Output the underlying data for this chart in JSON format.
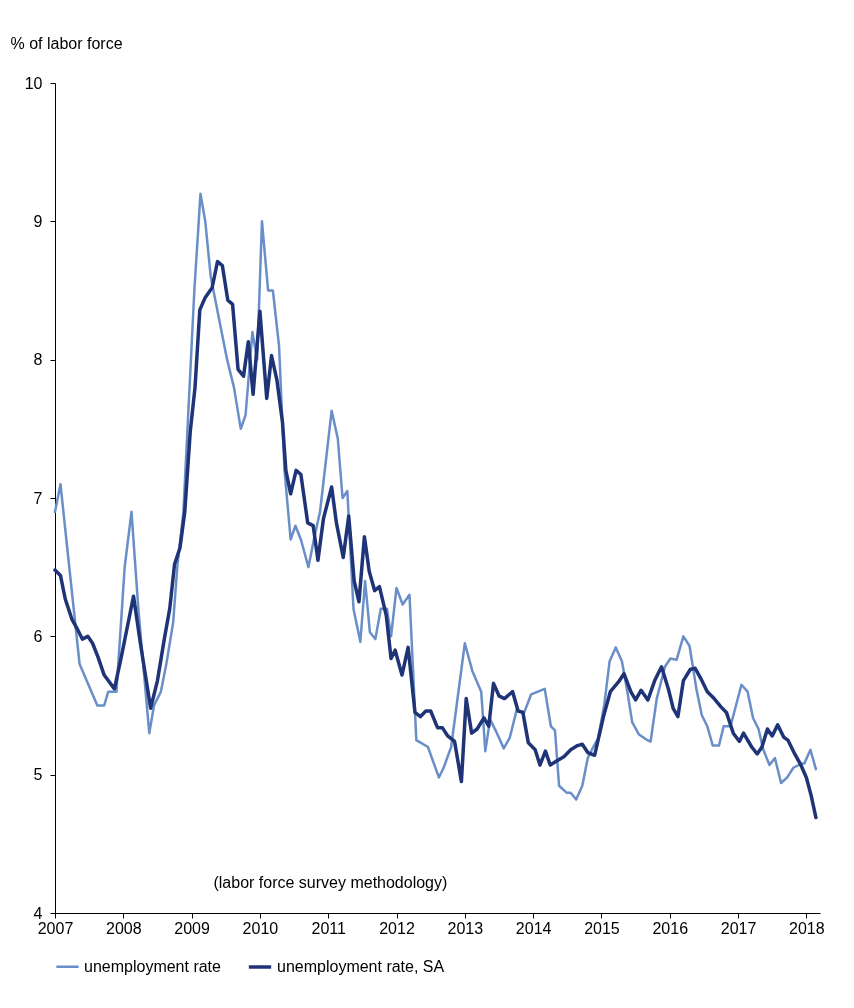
{
  "chart_data": {
    "type": "line",
    "ylabel": "% of labor force",
    "xlim": [
      2007,
      2018.2
    ],
    "xticks": [
      2007,
      2008,
      2009,
      2010,
      2011,
      2012,
      2013,
      2014,
      2015,
      2016,
      2017,
      2018
    ],
    "ylim": [
      4,
      10
    ],
    "yticks": [
      4,
      5,
      6,
      7,
      8,
      9,
      10
    ],
    "grid": false,
    "legend": "bottom",
    "marker": "none",
    "line_style": "solid",
    "annotations": [
      "(labor force survey methodology)"
    ],
    "series": [
      {
        "name": "unemployment rate",
        "color": "#6a8ec8",
        "x": [
          2007.0,
          2007.08,
          2007.36,
          2007.62,
          2007.72,
          2007.78,
          2007.9,
          2008.02,
          2008.12,
          2008.22,
          2008.38,
          2008.45,
          2008.55,
          2008.63,
          2008.73,
          2008.79,
          2008.88,
          2008.96,
          2009.04,
          2009.13,
          2009.2,
          2009.28,
          2009.4,
          2009.52,
          2009.62,
          2009.72,
          2009.79,
          2009.89,
          2009.96,
          2010.03,
          2010.12,
          2010.19,
          2010.28,
          2010.36,
          2010.45,
          2010.52,
          2010.6,
          2010.71,
          2010.79,
          2010.88,
          2010.95,
          2011.05,
          2011.14,
          2011.21,
          2011.28,
          2011.37,
          2011.47,
          2011.54,
          2011.61,
          2011.69,
          2011.77,
          2011.86,
          2011.92,
          2012.0,
          2012.09,
          2012.19,
          2012.29,
          2012.46,
          2012.62,
          2012.69,
          2012.8,
          2013.0,
          2013.11,
          2013.24,
          2013.3,
          2013.37,
          2013.47,
          2013.57,
          2013.66,
          2013.76,
          2013.87,
          2013.97,
          2014.17,
          2014.26,
          2014.32,
          2014.38,
          2014.49,
          2014.55,
          2014.63,
          2014.72,
          2014.8,
          2014.88,
          2014.95,
          2015.04,
          2015.12,
          2015.21,
          2015.3,
          2015.38,
          2015.45,
          2015.55,
          2015.67,
          2015.72,
          2015.81,
          2015.93,
          2016.01,
          2016.1,
          2016.2,
          2016.29,
          2016.39,
          2016.47,
          2016.55,
          2016.63,
          2016.72,
          2016.79,
          2016.89,
          2017.05,
          2017.14,
          2017.22,
          2017.3,
          2017.37,
          2017.46,
          2017.54,
          2017.63,
          2017.72,
          2017.81,
          2017.93,
          2017.97,
          2018.06,
          2018.14
        ],
        "values": [
          6.9,
          7.1,
          5.8,
          5.5,
          5.5,
          5.6,
          5.6,
          6.5,
          6.9,
          6.2,
          5.3,
          5.5,
          5.6,
          5.8,
          6.1,
          6.5,
          6.9,
          7.7,
          8.5,
          9.2,
          9.0,
          8.6,
          8.3,
          8.0,
          7.8,
          7.5,
          7.6,
          8.2,
          8.0,
          9.0,
          8.5,
          8.5,
          8.1,
          7.2,
          6.7,
          6.8,
          6.7,
          6.5,
          6.7,
          6.9,
          7.2,
          7.63,
          7.43,
          7.0,
          7.05,
          6.2,
          5.96,
          6.4,
          6.03,
          5.98,
          6.2,
          6.2,
          6.0,
          6.35,
          6.23,
          6.3,
          5.25,
          5.2,
          4.98,
          5.05,
          5.2,
          5.95,
          5.75,
          5.6,
          5.17,
          5.4,
          5.3,
          5.19,
          5.27,
          5.47,
          5.45,
          5.58,
          5.62,
          5.35,
          5.32,
          4.92,
          4.87,
          4.87,
          4.82,
          4.92,
          5.12,
          5.2,
          5.26,
          5.5,
          5.82,
          5.92,
          5.82,
          5.6,
          5.38,
          5.29,
          5.25,
          5.24,
          5.55,
          5.78,
          5.84,
          5.83,
          6.0,
          5.93,
          5.62,
          5.43,
          5.35,
          5.21,
          5.21,
          5.35,
          5.35,
          5.65,
          5.6,
          5.41,
          5.33,
          5.18,
          5.07,
          5.12,
          4.94,
          4.98,
          5.05,
          5.08,
          5.08,
          5.18,
          5.04
        ]
      },
      {
        "name": "unemployment rate, SA",
        "color": "#1f3477",
        "x": [
          2007.0,
          2007.08,
          2007.15,
          2007.25,
          2007.33,
          2007.4,
          2007.48,
          2007.55,
          2007.63,
          2007.72,
          2007.87,
          2007.97,
          2008.08,
          2008.15,
          2008.25,
          2008.33,
          2008.4,
          2008.5,
          2008.6,
          2008.68,
          2008.75,
          2008.83,
          2008.9,
          2008.98,
          2009.05,
          2009.12,
          2009.2,
          2009.3,
          2009.38,
          2009.45,
          2009.53,
          2009.6,
          2009.68,
          2009.76,
          2009.83,
          2009.9,
          2010.0,
          2010.1,
          2010.17,
          2010.25,
          2010.33,
          2010.38,
          2010.45,
          2010.53,
          2010.6,
          2010.7,
          2010.78,
          2010.85,
          2010.93,
          2011.05,
          2011.12,
          2011.22,
          2011.3,
          2011.38,
          2011.45,
          2011.53,
          2011.6,
          2011.68,
          2011.75,
          2011.85,
          2011.92,
          2011.98,
          2012.08,
          2012.17,
          2012.27,
          2012.35,
          2012.43,
          2012.5,
          2012.6,
          2012.67,
          2012.75,
          2012.85,
          2012.95,
          2013.02,
          2013.1,
          2013.18,
          2013.28,
          2013.35,
          2013.42,
          2013.5,
          2013.58,
          2013.7,
          2013.78,
          2013.85,
          2013.93,
          2014.03,
          2014.1,
          2014.18,
          2014.25,
          2014.35,
          2014.45,
          2014.55,
          2014.65,
          2014.72,
          2014.8,
          2014.9,
          2015.03,
          2015.13,
          2015.25,
          2015.33,
          2015.43,
          2015.5,
          2015.58,
          2015.68,
          2015.78,
          2015.88,
          2015.98,
          2016.05,
          2016.12,
          2016.2,
          2016.3,
          2016.37,
          2016.45,
          2016.55,
          2016.65,
          2016.75,
          2016.83,
          2016.93,
          2017.02,
          2017.08,
          2017.2,
          2017.28,
          2017.35,
          2017.43,
          2017.5,
          2017.58,
          2017.67,
          2017.73,
          2017.83,
          2017.92,
          2018.0,
          2018.07,
          2018.14
        ],
        "values": [
          6.48,
          6.44,
          6.27,
          6.12,
          6.05,
          5.98,
          6.0,
          5.95,
          5.85,
          5.72,
          5.62,
          5.85,
          6.12,
          6.29,
          5.95,
          5.7,
          5.48,
          5.68,
          5.98,
          6.2,
          6.52,
          6.64,
          6.9,
          7.48,
          7.8,
          8.36,
          8.45,
          8.52,
          8.71,
          8.68,
          8.43,
          8.4,
          7.93,
          7.88,
          8.13,
          7.75,
          8.35,
          7.72,
          8.03,
          7.85,
          7.55,
          7.2,
          7.03,
          7.2,
          7.17,
          6.82,
          6.8,
          6.55,
          6.85,
          7.08,
          6.82,
          6.57,
          6.87,
          6.4,
          6.25,
          6.72,
          6.47,
          6.33,
          6.36,
          6.15,
          5.84,
          5.9,
          5.72,
          5.92,
          5.45,
          5.42,
          5.46,
          5.46,
          5.34,
          5.34,
          5.28,
          5.24,
          4.95,
          5.55,
          5.3,
          5.33,
          5.41,
          5.35,
          5.66,
          5.57,
          5.55,
          5.6,
          5.46,
          5.45,
          5.23,
          5.18,
          5.07,
          5.17,
          5.07,
          5.1,
          5.13,
          5.18,
          5.21,
          5.22,
          5.16,
          5.14,
          5.42,
          5.6,
          5.67,
          5.73,
          5.6,
          5.54,
          5.61,
          5.54,
          5.68,
          5.78,
          5.62,
          5.48,
          5.42,
          5.68,
          5.76,
          5.77,
          5.7,
          5.6,
          5.55,
          5.49,
          5.45,
          5.3,
          5.24,
          5.3,
          5.2,
          5.15,
          5.2,
          5.33,
          5.28,
          5.36,
          5.27,
          5.25,
          5.15,
          5.07,
          4.98,
          4.85,
          4.69
        ]
      }
    ]
  }
}
